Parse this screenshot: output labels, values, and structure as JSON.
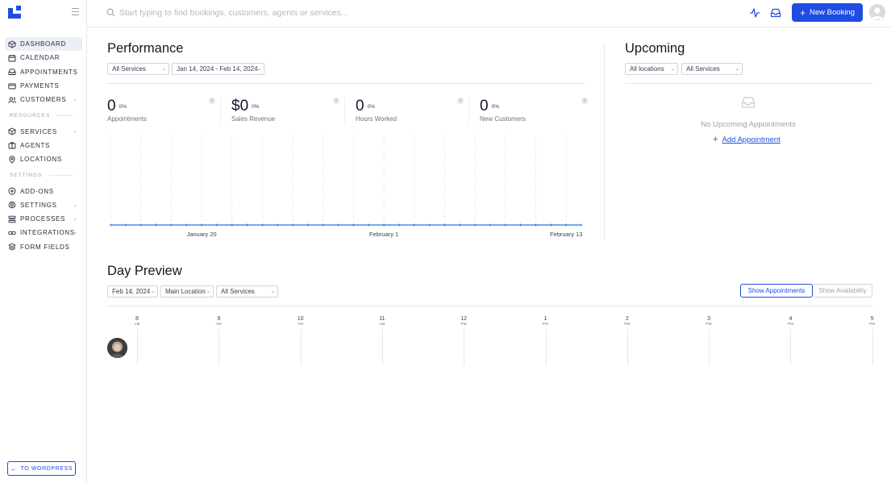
{
  "sidebar": {
    "items": [
      {
        "label": "DASHBOARD",
        "icon": "cube-icon",
        "active": true
      },
      {
        "label": "CALENDAR",
        "icon": "calendar-icon"
      },
      {
        "label": "APPOINTMENTS",
        "icon": "inbox-icon"
      },
      {
        "label": "PAYMENTS",
        "icon": "credit-card-icon"
      },
      {
        "label": "CUSTOMERS",
        "icon": "users-icon",
        "expandable": true
      }
    ],
    "resources_label": "RESOURCES",
    "resources": [
      {
        "label": "SERVICES",
        "icon": "cube-icon",
        "expandable": true
      },
      {
        "label": "AGENTS",
        "icon": "briefcase-icon"
      },
      {
        "label": "LOCATIONS",
        "icon": "map-pin-icon"
      }
    ],
    "settings_label": "SETTINGS",
    "settings": [
      {
        "label": "ADD-ONS",
        "icon": "plus-circle-icon"
      },
      {
        "label": "SETTINGS",
        "icon": "gear-icon",
        "expandable": true
      },
      {
        "label": "PROCESSES",
        "icon": "list-icon",
        "expandable": true
      },
      {
        "label": "INTEGRATIONS",
        "icon": "link-icon",
        "expandable": true
      },
      {
        "label": "FORM FIELDS",
        "icon": "layers-icon"
      }
    ],
    "wordpress_button": "TO WORDPRESS"
  },
  "header": {
    "search_placeholder": "Start typing to find bookings, customers, agents or services...",
    "new_booking_label": "New Booking"
  },
  "performance": {
    "title": "Performance",
    "service_filter": "All Services",
    "date_range": "Jan 14, 2024 - Feb 14, 2024",
    "stats": [
      {
        "value": "0",
        "pct": "0%",
        "label": "Appointments"
      },
      {
        "value": "$0",
        "pct": "0%",
        "label": "Sales Revenue"
      },
      {
        "value": "0",
        "pct": "0%",
        "label": "Hours Worked"
      },
      {
        "value": "0",
        "pct": "0%",
        "label": "New Customers"
      }
    ],
    "info_glyph": "i"
  },
  "chart_data": {
    "type": "line",
    "x_start": "2024-01-14",
    "x_end": "2024-02-14",
    "tick_labels": [
      "January 20",
      "February 1",
      "February 13"
    ],
    "tick_dates": [
      "2024-01-20",
      "2024-02-01",
      "2024-02-13"
    ],
    "series": [
      {
        "values": [
          0,
          0,
          0,
          0,
          0,
          0,
          0,
          0,
          0,
          0,
          0,
          0,
          0,
          0,
          0,
          0,
          0,
          0,
          0,
          0,
          0,
          0,
          0,
          0,
          0,
          0,
          0,
          0,
          0,
          0,
          0,
          0
        ]
      }
    ],
    "grid": "vertical dashed",
    "color": "#2a6fdb"
  },
  "upcoming": {
    "title": "Upcoming",
    "location_filter": "All locations",
    "service_filter": "All Services",
    "empty_text": "No Upcoming Appointments",
    "add_label": "Add Appointment"
  },
  "day_preview": {
    "title": "Day Preview",
    "date": "Feb 14, 2024",
    "location": "Main Location",
    "service": "All Services",
    "show_appointments": "Show Appointments",
    "show_availability": "Show Availability",
    "hours": [
      {
        "n": "8",
        "ap": "AM"
      },
      {
        "n": "9",
        "ap": "AM"
      },
      {
        "n": "10",
        "ap": "AM"
      },
      {
        "n": "11",
        "ap": "AM"
      },
      {
        "n": "12",
        "ap": "PM"
      },
      {
        "n": "1",
        "ap": "PM"
      },
      {
        "n": "2",
        "ap": "PM"
      },
      {
        "n": "3",
        "ap": "PM"
      },
      {
        "n": "4",
        "ap": "PM"
      },
      {
        "n": "5",
        "ap": "PM"
      }
    ]
  }
}
